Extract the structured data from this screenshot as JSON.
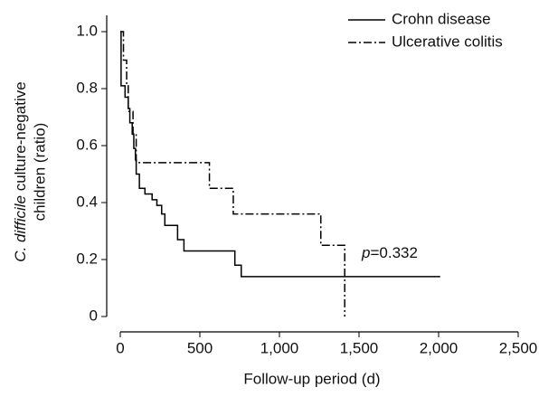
{
  "chart_data": {
    "type": "step",
    "xlabel": "Follow-up period (d)",
    "ylabel": {
      "italic": "C. difficile",
      "rest": " culture-negative",
      "line2": "children (ratio)"
    },
    "annotation": {
      "italic": "p",
      "rest": "=0.332"
    },
    "xlim": [
      0,
      2500
    ],
    "xticks": [
      0,
      500,
      {
        "value": 1000,
        "label": "1,000"
      },
      {
        "value": 1500,
        "label": "1,500"
      },
      {
        "value": 2000,
        "label": "2,000"
      },
      {
        "value": 2500,
        "label": "2,500"
      }
    ],
    "ylim": [
      0,
      1.0
    ],
    "yticks": [
      0,
      0.2,
      0.4,
      0.6,
      0.8,
      {
        "value": 1.0,
        "label": "1.0"
      }
    ],
    "legend": "upper right",
    "series": [
      {
        "name": "Crohn disease",
        "color": "#000000",
        "dash": "solid",
        "x": [
          0,
          5,
          30,
          50,
          60,
          75,
          85,
          95,
          100,
          120,
          155,
          200,
          230,
          260,
          280,
          360,
          400,
          720,
          760,
          2010
        ],
        "values": [
          1.0,
          0.81,
          0.77,
          0.73,
          0.68,
          0.64,
          0.59,
          0.55,
          0.5,
          0.45,
          0.43,
          0.41,
          0.39,
          0.36,
          0.32,
          0.27,
          0.23,
          0.18,
          0.14,
          0.14
        ]
      },
      {
        "name": "Ulcerative colitis",
        "color": "#000000",
        "dash": "dashdot",
        "x": [
          0,
          20,
          40,
          50,
          80,
          100,
          560,
          710,
          1260,
          1410
        ],
        "values": [
          1.0,
          0.9,
          0.81,
          0.72,
          0.64,
          0.54,
          0.45,
          0.36,
          0.25,
          0
        ]
      }
    ]
  }
}
